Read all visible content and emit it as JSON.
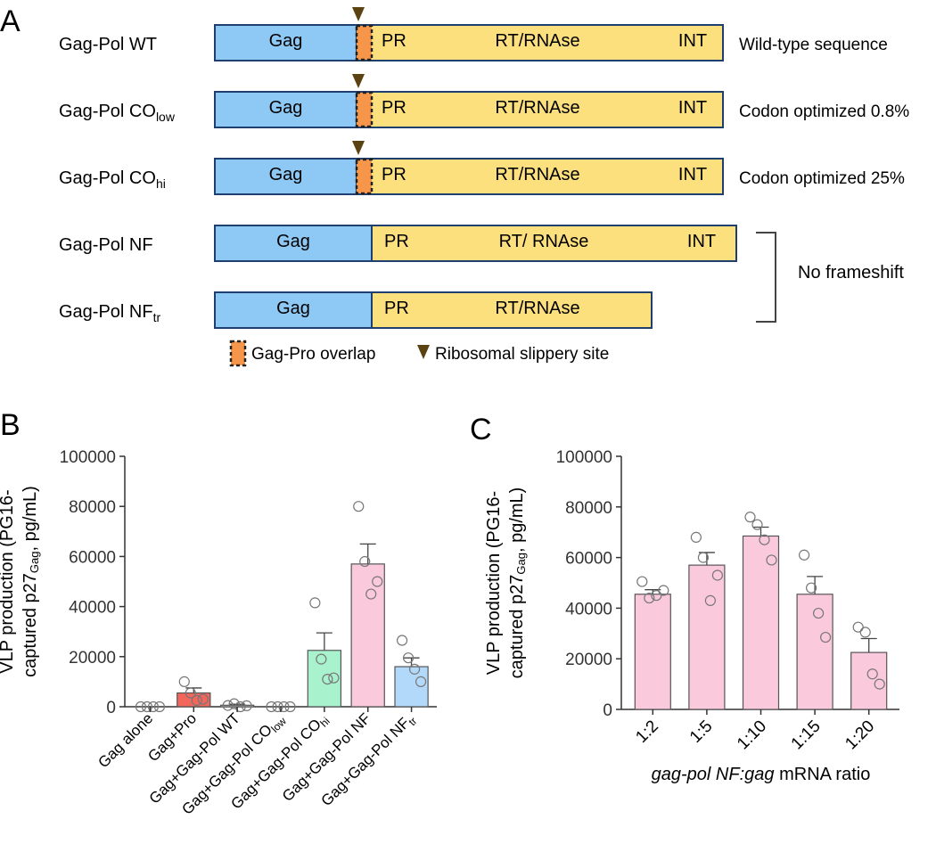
{
  "panelA": {
    "letter": "A",
    "colors": {
      "gag": "#8ec9f5",
      "pol": "#fde07e",
      "overlap": "#f6964a",
      "slip": "#5a4310",
      "border": "#1f3f6e"
    },
    "constructs": [
      {
        "label": "Gag-Pol WT",
        "sub": "",
        "domains": [
          "Gag",
          "PR",
          "RT/RNAse",
          "INT"
        ],
        "note": "Wild-type sequence",
        "frameshift": true
      },
      {
        "label": "Gag-Pol CO",
        "sub": "low",
        "domains": [
          "Gag",
          "PR",
          "RT/RNAse",
          "INT"
        ],
        "note": "Codon optimized 0.8%",
        "frameshift": true
      },
      {
        "label": "Gag-Pol CO",
        "sub": "hi",
        "domains": [
          "Gag",
          "PR",
          "RT/RNAse",
          "INT"
        ],
        "note": "Codon optimized 25%",
        "frameshift": true
      },
      {
        "label": "Gag-Pol NF",
        "sub": "",
        "domains": [
          "Gag",
          "PR",
          "RT/ RNAse",
          "INT"
        ],
        "note": "",
        "frameshift": false
      },
      {
        "label": "Gag-Pol NF",
        "sub": "tr",
        "domains": [
          "Gag",
          "PR",
          "RT/RNAse"
        ],
        "note": "",
        "frameshift": false
      }
    ],
    "bracket_label": "No frameshift",
    "legend": {
      "overlap": "Gag-Pro overlap",
      "slip": "Ribosomal slippery site"
    }
  },
  "chart_data": [
    {
      "panel": "B",
      "type": "bar",
      "ylabel_line1": "VLP production (PG16-",
      "ylabel_line2_pre": "captured p27",
      "ylabel_line2_sub": "Gag",
      "ylabel_line2_post": ", pg/mL)",
      "ylim": [
        0,
        100000
      ],
      "yticks": [
        "0",
        "20000",
        "40000",
        "60000",
        "80000",
        "100000"
      ],
      "categories": [
        {
          "main": "Gag alone",
          "sub": ""
        },
        {
          "main": "Gag+Pro",
          "sub": ""
        },
        {
          "main": "Gag+Gag-Pol WT",
          "sub": ""
        },
        {
          "main": "Gag+Gag-Pol CO",
          "sub": "low"
        },
        {
          "main": "Gag+Gag-Pol CO",
          "sub": "hi"
        },
        {
          "main": "Gag+Gag-Pol NF",
          "sub": ""
        },
        {
          "main": "Gag+Gag-Pol NF",
          "sub": "tr"
        }
      ],
      "values": [
        0,
        5500,
        600,
        0,
        22500,
        57000,
        16000
      ],
      "errors": [
        0,
        2000,
        400,
        0,
        7000,
        8000,
        3500
      ],
      "points": [
        [
          0,
          0,
          0,
          0
        ],
        [
          10000,
          5500,
          2500,
          3000
        ],
        [
          500,
          1200,
          0,
          400
        ],
        [
          0,
          0,
          0,
          0
        ],
        [
          41500,
          19000,
          11000,
          11500
        ],
        [
          80000,
          58000,
          45000,
          50000
        ],
        [
          26500,
          19500,
          15000,
          10000
        ]
      ],
      "colors": [
        "#cccccc",
        "#f2665c",
        "#d9d9d9",
        "#cccccc",
        "#a8f2cd",
        "#fbc9dc",
        "#b3d9fa"
      ]
    },
    {
      "panel": "C",
      "type": "bar",
      "ylabel_line1": "VLP production (PG16-",
      "ylabel_line2_pre": "captured p27",
      "ylabel_line2_sub": "Gag",
      "ylabel_line2_post": ", pg/mL)",
      "xlabel_italic": "gag-pol NF:gag",
      "xlabel_rest": " mRNA ratio",
      "ylim": [
        0,
        100000
      ],
      "yticks": [
        "0",
        "20000",
        "40000",
        "60000",
        "80000",
        "100000"
      ],
      "categories": [
        "1:2",
        "1:5",
        "1:10",
        "1:15",
        "1:20"
      ],
      "values": [
        45500,
        57000,
        68500,
        45500,
        22500
      ],
      "errors": [
        1800,
        5000,
        3500,
        7000,
        5500
      ],
      "points": [
        [
          50500,
          44000,
          45000,
          47000
        ],
        [
          68000,
          60000,
          43000,
          53000
        ],
        [
          76000,
          73000,
          67000,
          59000
        ],
        [
          61000,
          48000,
          38000,
          28500
        ],
        [
          32500,
          30500,
          14000,
          10000
        ]
      ],
      "color": "#fbc9dc"
    }
  ]
}
